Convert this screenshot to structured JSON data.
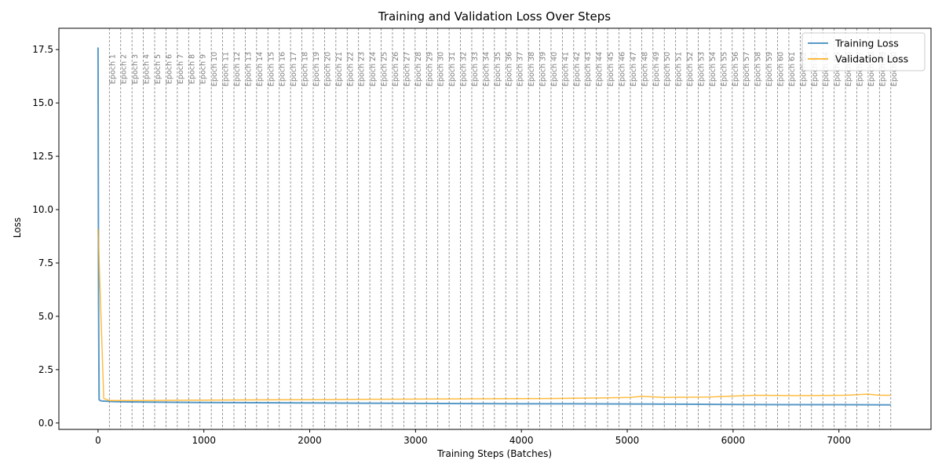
{
  "chart_data": {
    "type": "line",
    "title": "Training and Validation Loss Over Steps",
    "xlabel": "Training Steps (Batches)",
    "ylabel": "Loss",
    "xlim": [
      -370,
      7870
    ],
    "ylim": [
      -0.3,
      18.5
    ],
    "xticks": [
      0,
      1000,
      2000,
      3000,
      4000,
      5000,
      6000,
      7000
    ],
    "yticks": [
      0.0,
      2.5,
      5.0,
      7.5,
      10.0,
      12.5,
      15.0,
      17.5
    ],
    "xtick_labels": [
      "0",
      "1000",
      "2000",
      "3000",
      "4000",
      "5000",
      "6000",
      "7000"
    ],
    "ytick_labels": [
      "0.0",
      "2.5",
      "5.0",
      "7.5",
      "10.0",
      "12.5",
      "15.0",
      "17.5"
    ],
    "grid": false,
    "legend_position": "top-right",
    "epoch_markers": {
      "label_prefix": "Epoch ",
      "start": 1,
      "count": 70,
      "first_step": 107,
      "step_interval": 107
    },
    "series": [
      {
        "name": "Training Loss",
        "color": "#1f77b4",
        "opacity": 0.75,
        "x": [
          0,
          5,
          10,
          20,
          40,
          80,
          150,
          300,
          500,
          750,
          1000,
          1500,
          2000,
          2500,
          3000,
          3500,
          4000,
          4500,
          5000,
          5500,
          6000,
          6500,
          7000,
          7490
        ],
        "y": [
          17.6,
          5.7,
          1.1,
          1.05,
          1.03,
          1.02,
          1.0,
          0.99,
          0.98,
          0.97,
          0.96,
          0.95,
          0.94,
          0.93,
          0.92,
          0.91,
          0.9,
          0.9,
          0.89,
          0.88,
          0.87,
          0.86,
          0.86,
          0.85
        ]
      },
      {
        "name": "Validation Loss",
        "color": "#ffa500",
        "opacity": 0.75,
        "x": [
          0,
          54,
          107,
          214,
          428,
          856,
          1284,
          1712,
          2140,
          2568,
          2996,
          3424,
          3852,
          4280,
          4708,
          5029,
          5136,
          5350,
          5778,
          6206,
          6634,
          7062,
          7276,
          7383,
          7490
        ],
        "y": [
          9.1,
          1.15,
          1.05,
          1.05,
          1.05,
          1.07,
          1.08,
          1.09,
          1.1,
          1.11,
          1.12,
          1.13,
          1.14,
          1.15,
          1.17,
          1.2,
          1.25,
          1.2,
          1.22,
          1.3,
          1.28,
          1.3,
          1.35,
          1.3,
          1.3
        ]
      }
    ]
  }
}
